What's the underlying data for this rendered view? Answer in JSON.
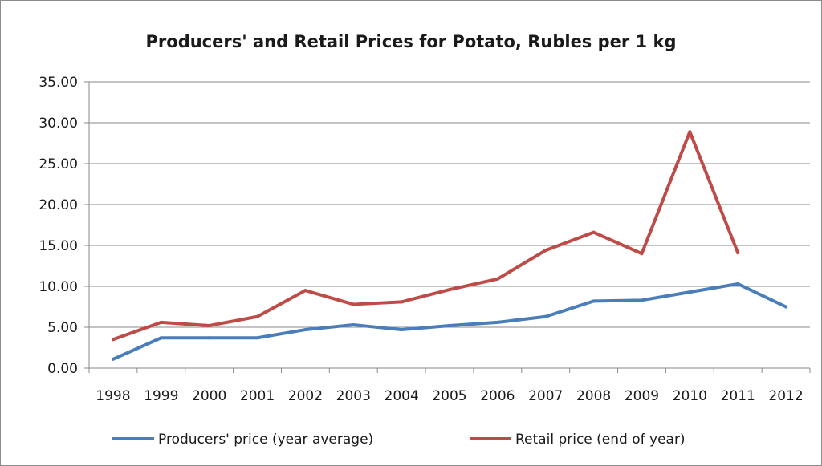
{
  "chart_data": {
    "type": "line",
    "title": "Producers' and Retail Prices for Potato, Rubles per 1 kg",
    "xlabel": "",
    "ylabel": "",
    "ylim": [
      0,
      35
    ],
    "y_ticks": [
      "0.00",
      "5.00",
      "10.00",
      "15.00",
      "20.00",
      "25.00",
      "30.00",
      "35.00"
    ],
    "categories": [
      "1998",
      "1999",
      "2000",
      "2001",
      "2002",
      "2003",
      "2004",
      "2005",
      "2006",
      "2007",
      "2008",
      "2009",
      "2010",
      "2011",
      "2012"
    ],
    "grid": true,
    "legend_position": "bottom",
    "series": [
      {
        "name": "Producers' price (year average)",
        "color": "#4a7ebb",
        "values": [
          1.1,
          3.7,
          3.7,
          3.7,
          4.7,
          5.3,
          4.7,
          5.2,
          5.6,
          6.3,
          8.2,
          8.3,
          9.3,
          10.3,
          7.5
        ]
      },
      {
        "name": "Retail price (end of year)",
        "color": "#be4b48",
        "values": [
          3.5,
          5.6,
          5.2,
          6.3,
          9.5,
          7.8,
          8.1,
          9.6,
          10.9,
          14.4,
          16.6,
          14.0,
          28.9,
          14.1,
          null
        ]
      }
    ]
  }
}
